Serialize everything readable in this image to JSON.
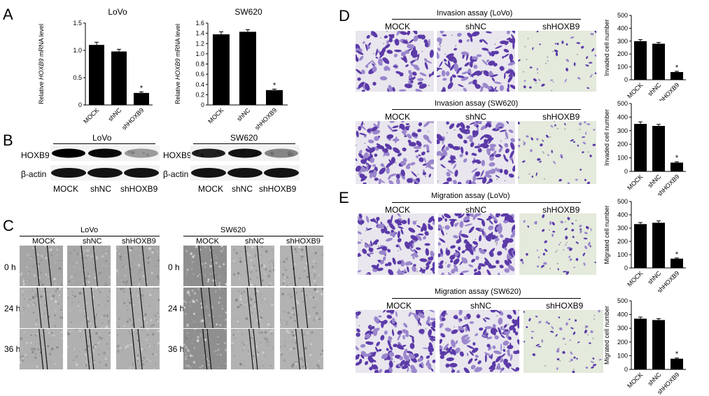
{
  "panels": {
    "A": "A",
    "B": "B",
    "C": "C",
    "D": "D",
    "E": "E"
  },
  "chart_data": [
    {
      "id": "A-LoVo",
      "type": "bar",
      "title": "LoVo",
      "ylabel_pre": "Relative ",
      "ylabel_gene": "HOXB9",
      "ylabel_post": " mRNA level",
      "categories": [
        "MOCK",
        "shNC",
        "shHOXB9"
      ],
      "values": [
        1.1,
        0.98,
        0.22
      ],
      "errors": [
        0.05,
        0.04,
        0.02
      ],
      "stars": [
        "",
        "",
        "*"
      ],
      "yticks": [
        "0",
        "0.5",
        "1.0",
        "1.5"
      ],
      "ylim": [
        0,
        1.5
      ]
    },
    {
      "id": "A-SW620",
      "type": "bar",
      "title": "SW620",
      "ylabel_pre": "Relative ",
      "ylabel_gene": "HOXB9",
      "ylabel_post": " mRNA level",
      "categories": [
        "MOCK",
        "shNC",
        "shHOXB9"
      ],
      "values": [
        1.38,
        1.43,
        0.29
      ],
      "errors": [
        0.05,
        0.04,
        0.02
      ],
      "stars": [
        "",
        "",
        "*"
      ],
      "yticks": [
        "0",
        "0.2",
        "0.4",
        "0.6",
        "0.8",
        "1.0",
        "1.2",
        "1.4",
        "1.6"
      ],
      "ylim": [
        0,
        1.6
      ]
    },
    {
      "id": "D-LoVo",
      "type": "bar",
      "title": "",
      "ylabel": "Invaded cell number",
      "categories": [
        "MOCK",
        "shNC",
        "shHOXB9"
      ],
      "values": [
        300,
        280,
        60
      ],
      "errors": [
        12,
        10,
        6
      ],
      "stars": [
        "",
        "",
        "*"
      ],
      "yticks": [
        "0",
        "100",
        "200",
        "300",
        "400",
        "500"
      ],
      "ylim": [
        0,
        500
      ]
    },
    {
      "id": "D-SW620",
      "type": "bar",
      "title": "",
      "ylabel": "Invaded cell number",
      "categories": [
        "MOCK",
        "shNC",
        "shHOXB9"
      ],
      "values": [
        350,
        335,
        65
      ],
      "errors": [
        15,
        12,
        6
      ],
      "stars": [
        "",
        "",
        "*"
      ],
      "yticks": [
        "0",
        "100",
        "200",
        "300",
        "400",
        "500"
      ],
      "ylim": [
        0,
        500
      ]
    },
    {
      "id": "E-LoVo",
      "type": "bar",
      "title": "",
      "ylabel": "Migrated cell number",
      "categories": [
        "MOCK",
        "shNC",
        "shHOXB9"
      ],
      "values": [
        330,
        340,
        70
      ],
      "errors": [
        12,
        14,
        5
      ],
      "stars": [
        "",
        "",
        "*"
      ],
      "yticks": [
        "0",
        "100",
        "200",
        "300",
        "400",
        "500"
      ],
      "ylim": [
        0,
        500
      ]
    },
    {
      "id": "E-SW620",
      "type": "bar",
      "title": "",
      "ylabel": "Migrated cell number",
      "categories": [
        "MOCK",
        "shNC",
        "shHOXB9"
      ],
      "values": [
        370,
        360,
        78
      ],
      "errors": [
        12,
        10,
        5
      ],
      "stars": [
        "",
        "",
        "*"
      ],
      "yticks": [
        "0",
        "100",
        "200",
        "300",
        "400",
        "500"
      ],
      "ylim": [
        0,
        500
      ]
    }
  ],
  "blots": {
    "lovo": {
      "header": "LoVo",
      "row1": "HOXB9",
      "row2": "β-actin",
      "lanes": [
        "MOCK",
        "shNC",
        "shHOXB9"
      ],
      "hoxb9_levels": [
        1.0,
        0.95,
        0.25
      ]
    },
    "sw620": {
      "header": "SW620",
      "row1": "HOXB9",
      "row2": "β-actin",
      "lanes": [
        "MOCK",
        "shNC",
        "shHOXB9"
      ],
      "hoxb9_levels": [
        0.85,
        0.9,
        0.35
      ]
    }
  },
  "wound": {
    "lovo": {
      "header": "LoVo",
      "cols": [
        "MOCK",
        "shNC",
        "shHOXB9"
      ]
    },
    "sw620": {
      "header": "SW620",
      "cols": [
        "MOCK",
        "shNC",
        "shHOXB9"
      ]
    },
    "rows": [
      "0 h",
      "24 h",
      "36 h"
    ]
  },
  "micro": {
    "D_lovo": {
      "title": "Invasion assay (LoVo)",
      "cols": [
        "MOCK",
        "shNC",
        "shHOXB9"
      ],
      "density": [
        0.7,
        0.75,
        0.25
      ]
    },
    "D_sw620": {
      "title": "Invasion assay (SW620)",
      "cols": [
        "MOCK",
        "shNC",
        "shHOXB9"
      ],
      "density": [
        0.9,
        0.85,
        0.28
      ]
    },
    "E_lovo": {
      "title": "Migration assay (LoVo)",
      "cols": [
        "MOCK",
        "shNC",
        "shHOXB9"
      ],
      "density": [
        0.85,
        0.95,
        0.35
      ]
    },
    "E_sw620": {
      "title": "Migration assay (SW620)",
      "cols": [
        "MOCK",
        "shNC",
        "shHOXB9"
      ],
      "density": [
        0.95,
        0.9,
        0.3
      ]
    }
  },
  "colors": {
    "bar": "#000000",
    "stain_dark": "#5b3aa8",
    "stain_light": "#9a86cc",
    "micro_bg": "#e9e6ee",
    "micro_bg_sparse": "#e4eadc",
    "wound_bg": "#a9a9a9"
  }
}
